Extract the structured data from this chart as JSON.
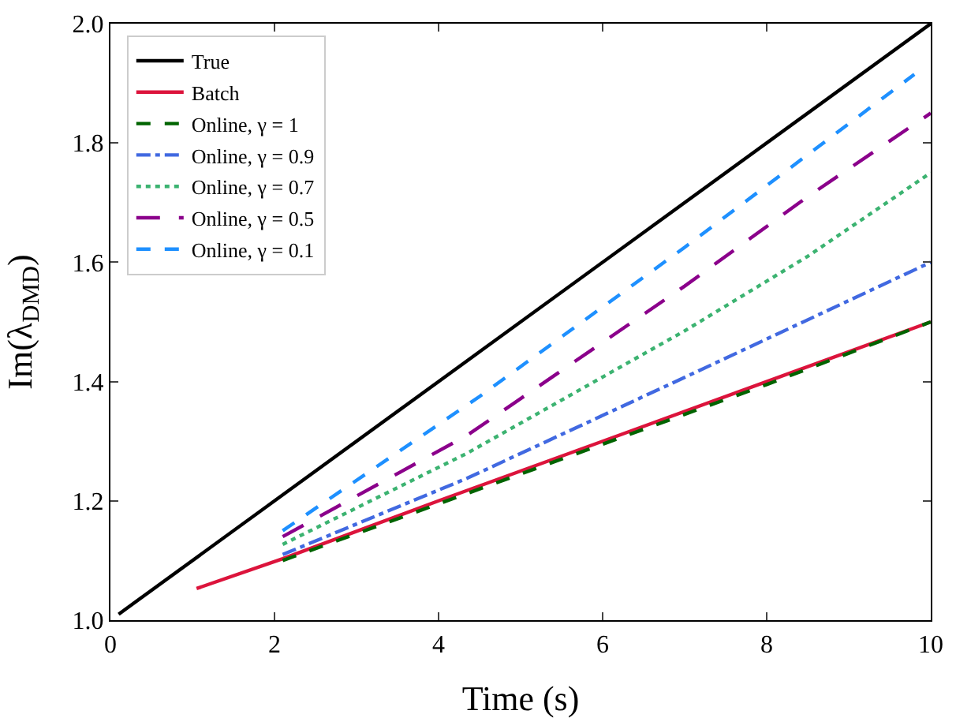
{
  "chart_data": {
    "type": "line",
    "xlabel": "Time (s)",
    "ylabel": "Im(λ$_{DMD}$)",
    "xlim": [
      0,
      10
    ],
    "ylim": [
      1.0,
      2.0
    ],
    "xticks": [
      0,
      2,
      4,
      6,
      8,
      10
    ],
    "yticks": [
      {
        "value": 1.0,
        "label": "1.0"
      },
      {
        "value": 1.2,
        "label": "1.2"
      },
      {
        "value": 1.4,
        "label": "1.4"
      },
      {
        "value": 1.6,
        "label": "1.6"
      },
      {
        "value": 1.8,
        "label": "1.8"
      },
      {
        "value": 2.0,
        "label": "2.0"
      }
    ],
    "grid": false,
    "legend": "top left",
    "marker": "none",
    "series": [
      {
        "name": "True",
        "color": "#000000",
        "line_style": "solid",
        "x": [
          0.1,
          10
        ],
        "values": [
          1.01,
          2.0
        ]
      },
      {
        "name": "Batch",
        "color": "#dc143c",
        "line_style": "solid",
        "x": [
          1.05,
          2.1,
          4,
          6,
          8,
          10
        ],
        "values": [
          1.053,
          1.103,
          1.2,
          1.3,
          1.4,
          1.5
        ]
      },
      {
        "name": "Online, γ = 1",
        "color": "#006400",
        "line_style": "dashed",
        "x": [
          2.1,
          4,
          6,
          8,
          10
        ],
        "values": [
          1.1,
          1.195,
          1.295,
          1.395,
          1.5
        ]
      },
      {
        "name": "Online, γ = 0.9",
        "color": "#4169e1",
        "line_style": "dashdot",
        "x": [
          2.1,
          4.35,
          7,
          10
        ],
        "values": [
          1.11,
          1.238,
          1.407,
          1.6
        ]
      },
      {
        "name": "Online, γ = 0.7",
        "color": "#3cb371",
        "line_style": "dotted",
        "x": [
          2.1,
          4.35,
          7,
          8.5,
          10
        ],
        "values": [
          1.127,
          1.28,
          1.485,
          1.61,
          1.75
        ]
      },
      {
        "name": "Online, γ = 0.5",
        "color": "#8b008b",
        "line_style": "longdash",
        "x": [
          2.1,
          4.35,
          7,
          8.5,
          10
        ],
        "values": [
          1.14,
          1.31,
          1.56,
          1.71,
          1.85
        ]
      },
      {
        "name": "Online, γ = 0.1",
        "color": "#1e90ff",
        "line_style": "dashed",
        "x": [
          2.1,
          4.5,
          7,
          9.8
        ],
        "values": [
          1.15,
          1.375,
          1.625,
          1.915
        ]
      }
    ]
  }
}
